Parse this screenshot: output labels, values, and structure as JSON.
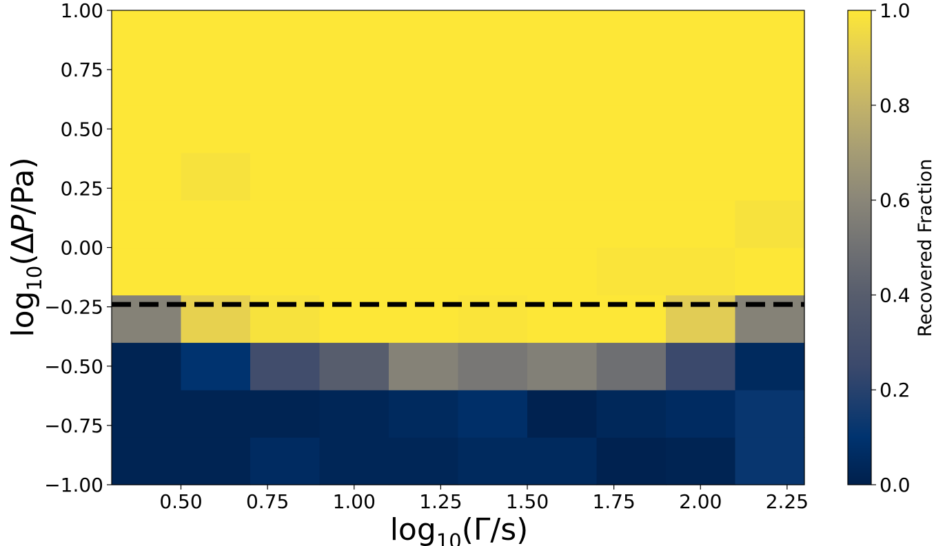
{
  "chart_data": {
    "type": "heatmap",
    "title": "",
    "xlabel": "log10(Γ/s)",
    "xlabel_base": "log",
    "xlabel_sub": "10",
    "xlabel_rest": "(Γ/s)",
    "ylabel": "log10(ΔP/Pa)",
    "ylabel_base": "log",
    "ylabel_sub": "10",
    "ylabel_pre": "(Δ",
    "ylabel_var": "P",
    "ylabel_post": "/Pa)",
    "xlim": [
      0.3,
      2.3
    ],
    "ylim": [
      -1.0,
      1.0
    ],
    "x_ticks": [
      "0.50",
      "0.75",
      "1.00",
      "1.25",
      "1.50",
      "1.75",
      "2.00",
      "2.25"
    ],
    "x_tick_values": [
      0.5,
      0.75,
      1.0,
      1.25,
      1.5,
      1.75,
      2.0,
      2.25
    ],
    "y_ticks": [
      "1.00",
      "0.75",
      "0.50",
      "0.25",
      "0.00",
      "−0.25",
      "−0.50",
      "−0.75",
      "−1.00"
    ],
    "y_tick_values": [
      1.0,
      0.75,
      0.5,
      0.25,
      0.0,
      -0.25,
      -0.5,
      -0.75,
      -1.0
    ],
    "x_bin_edges": [
      0.3,
      0.5,
      0.7,
      0.9,
      1.1,
      1.3,
      1.5,
      1.7,
      1.9,
      2.1,
      2.3
    ],
    "y_bin_edges": [
      -1.0,
      -0.8,
      -0.6,
      -0.4,
      -0.2,
      0.0,
      0.2,
      0.4,
      0.6,
      0.8,
      1.0
    ],
    "values_rows_bottom_to_top": [
      [
        0.02,
        0.02,
        0.06,
        0.03,
        0.03,
        0.05,
        0.05,
        0.01,
        0.02,
        0.12
      ],
      [
        0.02,
        0.02,
        0.02,
        0.03,
        0.05,
        0.08,
        0.01,
        0.04,
        0.06,
        0.12
      ],
      [
        0.02,
        0.1,
        0.28,
        0.4,
        0.58,
        0.53,
        0.57,
        0.49,
        0.25,
        0.05
      ],
      [
        0.58,
        0.92,
        0.98,
        1.0,
        1.0,
        0.99,
        1.0,
        1.0,
        0.9,
        0.58
      ],
      [
        1.0,
        1.0,
        1.0,
        1.0,
        1.0,
        1.0,
        1.0,
        0.99,
        0.99,
        1.0
      ],
      [
        1.0,
        1.0,
        1.0,
        1.0,
        1.0,
        1.0,
        1.0,
        1.0,
        1.0,
        0.98
      ],
      [
        1.0,
        0.98,
        1.0,
        1.0,
        1.0,
        1.0,
        1.0,
        1.0,
        1.0,
        1.0
      ],
      [
        1.0,
        1.0,
        1.0,
        1.0,
        1.0,
        1.0,
        1.0,
        1.0,
        1.0,
        1.0
      ],
      [
        1.0,
        1.0,
        1.0,
        1.0,
        1.0,
        1.0,
        1.0,
        1.0,
        1.0,
        1.0
      ],
      [
        1.0,
        1.0,
        1.0,
        1.0,
        1.0,
        1.0,
        1.0,
        1.0,
        1.0,
        1.0
      ]
    ],
    "threshold_line_y": -0.24,
    "threshold_line_style": "dashed black",
    "colormap": "cividis",
    "colorbar": {
      "label": "Recovered Fraction",
      "range": [
        0.0,
        1.0
      ],
      "ticks": [
        "0.0",
        "0.2",
        "0.4",
        "0.6",
        "0.8",
        "1.0"
      ],
      "tick_values": [
        0.0,
        0.2,
        0.4,
        0.6,
        0.8,
        1.0
      ],
      "placement": "right"
    },
    "grid": false
  }
}
